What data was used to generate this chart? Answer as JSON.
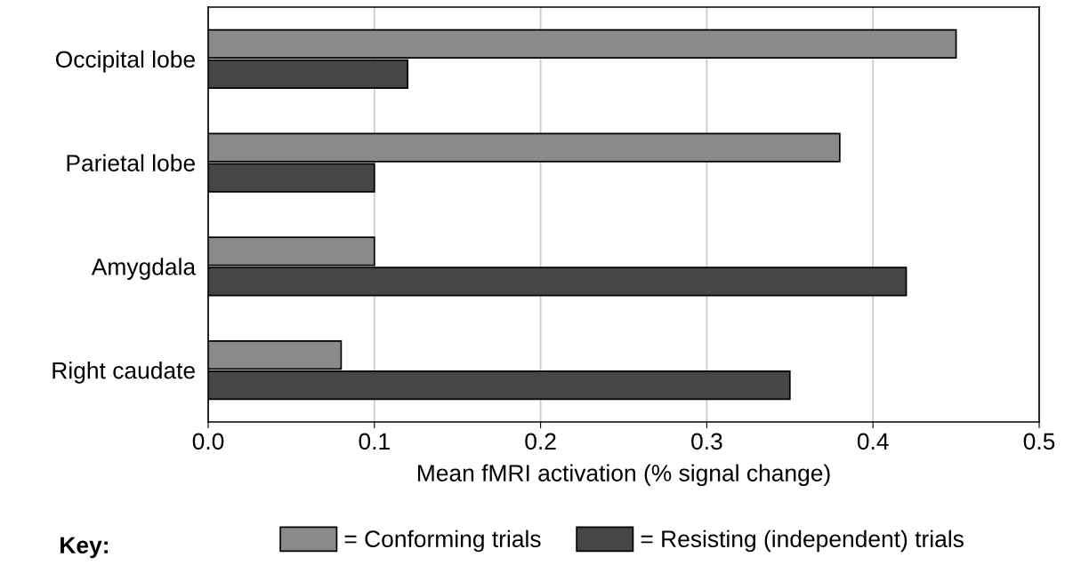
{
  "chart_data": {
    "type": "bar",
    "orientation": "horizontal",
    "categories": [
      "Occipital lobe",
      "Parietal lobe",
      "Amygdala",
      "Right caudate"
    ],
    "series": [
      {
        "name": "= Conforming trials",
        "color": "#8a8a8a",
        "values": [
          0.45,
          0.38,
          0.1,
          0.08
        ]
      },
      {
        "name": "= Resisting (independent) trials",
        "color": "#464646",
        "values": [
          0.12,
          0.1,
          0.42,
          0.35
        ]
      }
    ],
    "xlabel": "Mean fMRI activation (% signal change)",
    "xlim": [
      0.0,
      0.5
    ],
    "xticks": [
      {
        "value": 0.0,
        "label": "0.0"
      },
      0.1,
      0.2,
      0.3,
      0.4,
      0.5
    ],
    "grid": "x",
    "legend": "bottom",
    "legend_title": "Key:"
  }
}
